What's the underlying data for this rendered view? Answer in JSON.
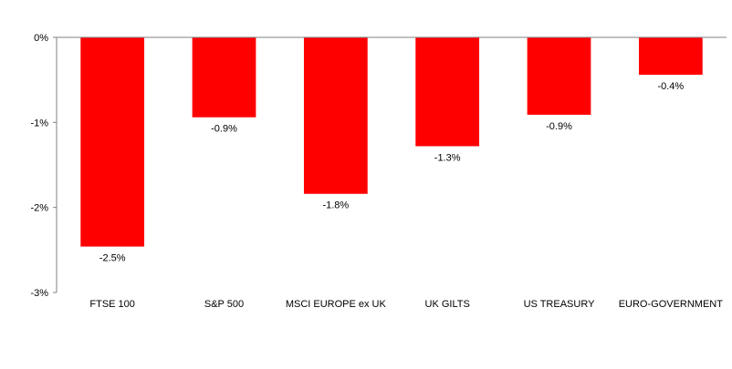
{
  "chart_data": {
    "type": "bar",
    "title": "",
    "xlabel": "",
    "ylabel": "",
    "categories": [
      "FTSE 100",
      "S&P 500",
      "MSCI EUROPE ex UK",
      "UK GILTS",
      "US TREASURY",
      "EURO-GOVERNMENT"
    ],
    "values": [
      -2.46,
      -0.94,
      -1.84,
      -1.28,
      -0.91,
      -0.44
    ],
    "data_labels": [
      "-2.5%",
      "-0.9%",
      "-1.8%",
      "-1.3%",
      "-0.9%",
      "-0.4%"
    ],
    "ylim": [
      -3,
      0
    ],
    "yticks": [
      0,
      -1,
      -2,
      -3
    ],
    "ytick_labels": [
      "0%",
      "-1%",
      "-2%",
      "-3%"
    ],
    "grid": false,
    "legend": "none",
    "colors": {
      "bar": "#ff0000",
      "axis": "#808080",
      "text": "#000000"
    }
  }
}
